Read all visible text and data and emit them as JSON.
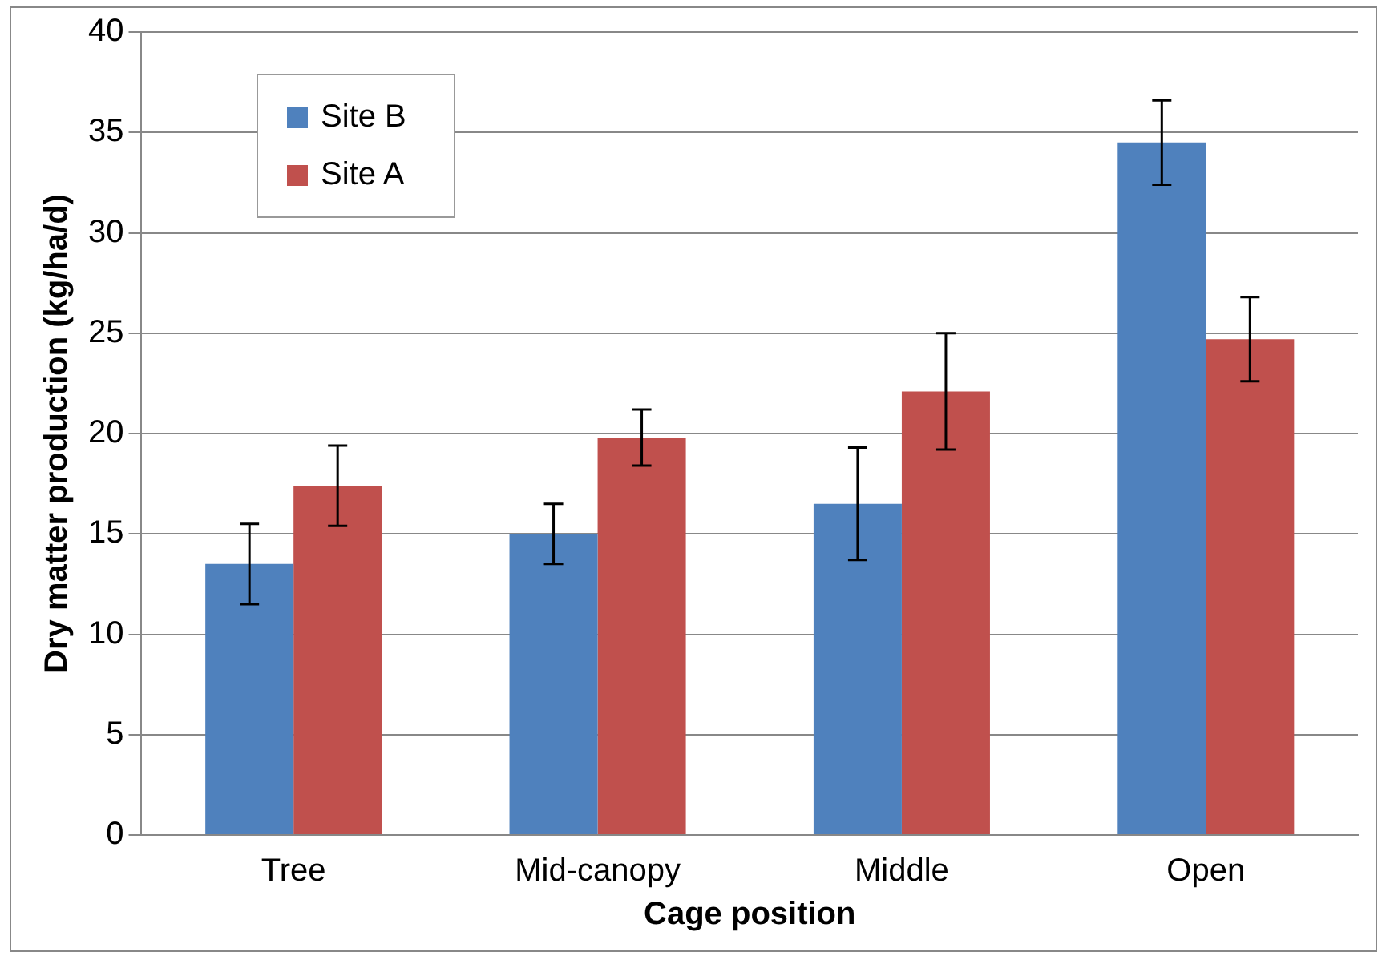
{
  "chart_data": {
    "type": "bar",
    "xlabel": "Cage position",
    "ylabel": "Dry matter production (kg/ha/d)",
    "categories": [
      "Tree",
      "Mid-canopy",
      "Middle",
      "Open"
    ],
    "series": [
      {
        "name": "Site B",
        "color": "#4f81bd",
        "values": [
          13.5,
          15.0,
          16.5,
          34.5
        ],
        "errors": [
          2.0,
          1.5,
          2.8,
          2.1
        ]
      },
      {
        "name": "Site A",
        "color": "#c0504d",
        "values": [
          17.4,
          19.8,
          22.1,
          24.7
        ],
        "errors": [
          2.0,
          1.4,
          2.9,
          2.1
        ]
      }
    ],
    "ylim": [
      0,
      40
    ],
    "yticks": [
      0,
      5,
      10,
      15,
      20,
      25,
      30,
      35,
      40
    ],
    "grid": "y",
    "legend": "top left"
  }
}
